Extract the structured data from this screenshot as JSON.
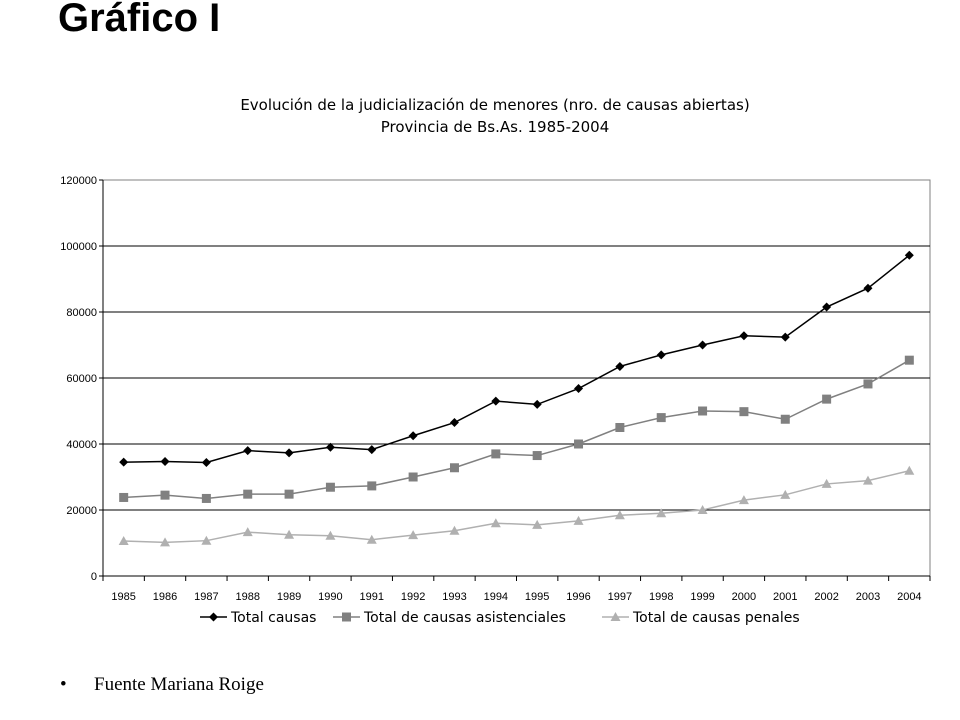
{
  "page": {
    "title": "Gráfico I",
    "footer_bullet": "•",
    "footer_text": "Fuente Mariana Roige"
  },
  "chart_data": {
    "type": "line",
    "title": "Evolución de la judicialización de menores (nro. de causas abiertas)",
    "subtitle": "Provincia de Bs.As. 1985-2004",
    "xlabel": "",
    "ylabel": "",
    "categories": [
      "1985",
      "1986",
      "1987",
      "1988",
      "1989",
      "1990",
      "1991",
      "1992",
      "1993",
      "1994",
      "1995",
      "1996",
      "1997",
      "1998",
      "1999",
      "2000",
      "2001",
      "2002",
      "2003",
      "2004"
    ],
    "ylim": [
      0,
      120000
    ],
    "yticks": [
      0,
      20000,
      40000,
      60000,
      80000,
      100000,
      120000
    ],
    "grid": "horizontal",
    "legend_position": "bottom",
    "series": [
      {
        "name": "Total causas",
        "marker": "diamond",
        "color": "#000000",
        "values": [
          34500,
          34700,
          34400,
          38000,
          37300,
          39000,
          38300,
          42500,
          46500,
          53000,
          52000,
          56800,
          63500,
          67000,
          70000,
          72800,
          72400,
          81500,
          87200,
          97200
        ]
      },
      {
        "name": "Total de causas asistenciales",
        "marker": "square",
        "color": "#808080",
        "values": [
          23800,
          24500,
          23500,
          24800,
          24800,
          26900,
          27300,
          30000,
          32800,
          37000,
          36500,
          40000,
          45000,
          48000,
          50000,
          49800,
          47500,
          53600,
          58200,
          65400
        ]
      },
      {
        "name": "Total de causas penales",
        "marker": "triangle",
        "color": "#b0b0b0",
        "values": [
          10600,
          10200,
          10700,
          13300,
          12500,
          12200,
          11000,
          12400,
          13700,
          16000,
          15500,
          16700,
          18400,
          19000,
          20000,
          23000,
          24600,
          27900,
          28900,
          31900
        ]
      }
    ]
  }
}
